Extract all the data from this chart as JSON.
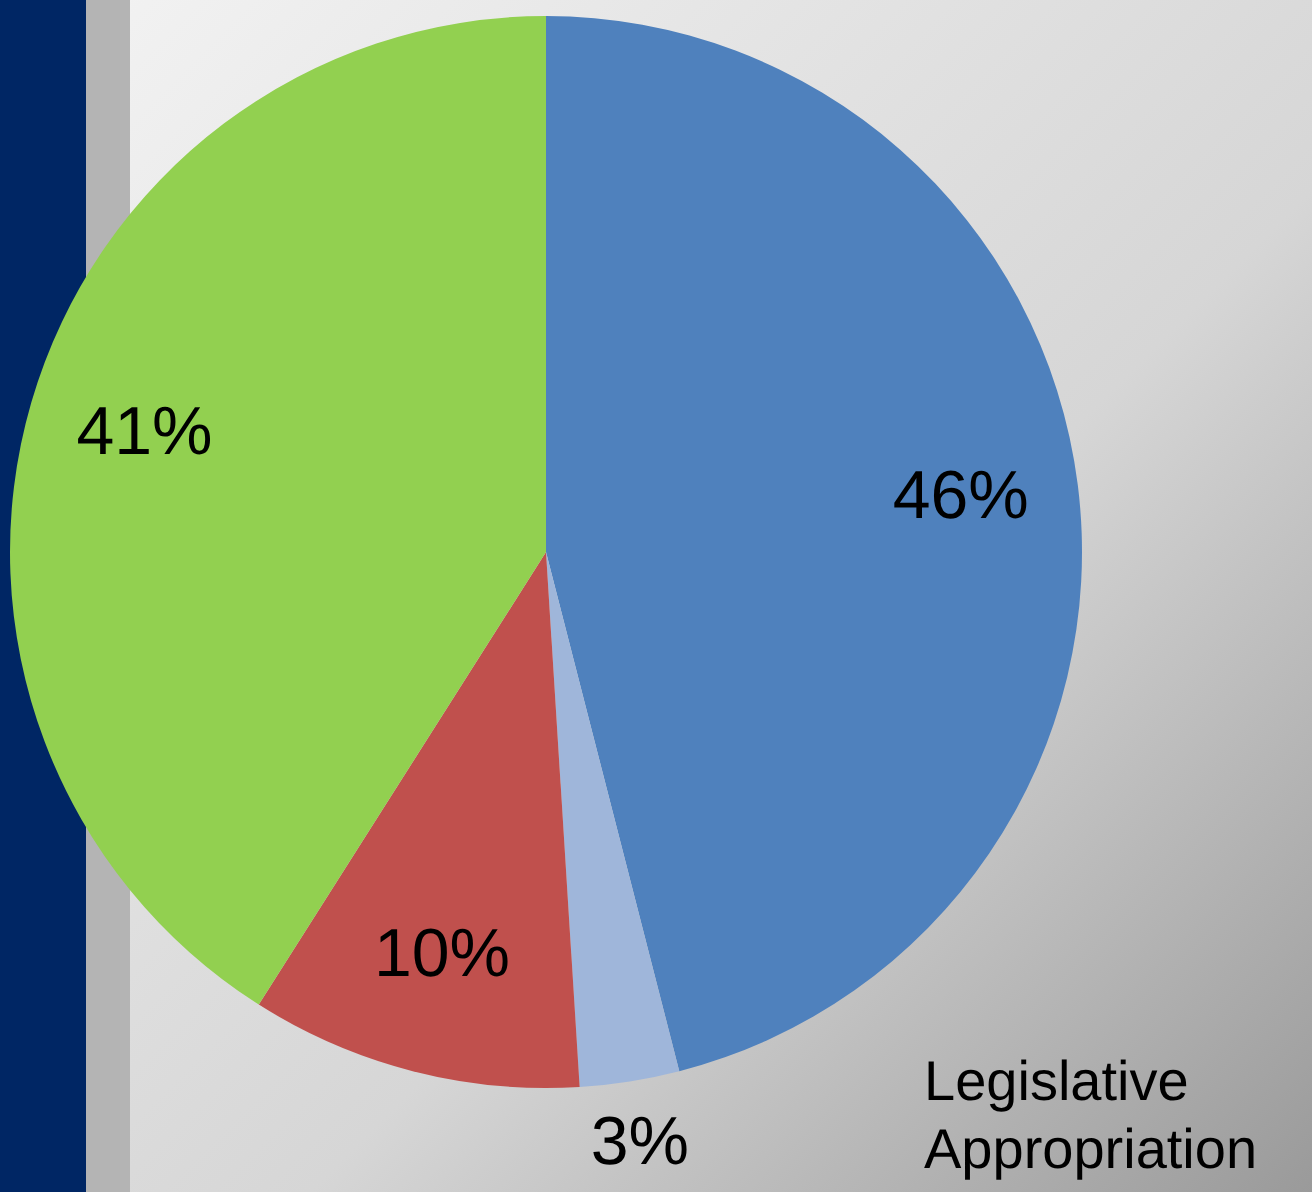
{
  "chart_data": {
    "type": "pie",
    "categories": [
      null,
      null,
      null,
      null
    ],
    "values": [
      46,
      3,
      10,
      41
    ],
    "colors": [
      "#4f81bd",
      "#9fb6da",
      "#c0504d",
      "#92d050"
    ],
    "value_labels": [
      "46%",
      "3%",
      "10%",
      "41%"
    ],
    "annotations": [
      "Legislative Appropriation"
    ],
    "legend": false
  }
}
